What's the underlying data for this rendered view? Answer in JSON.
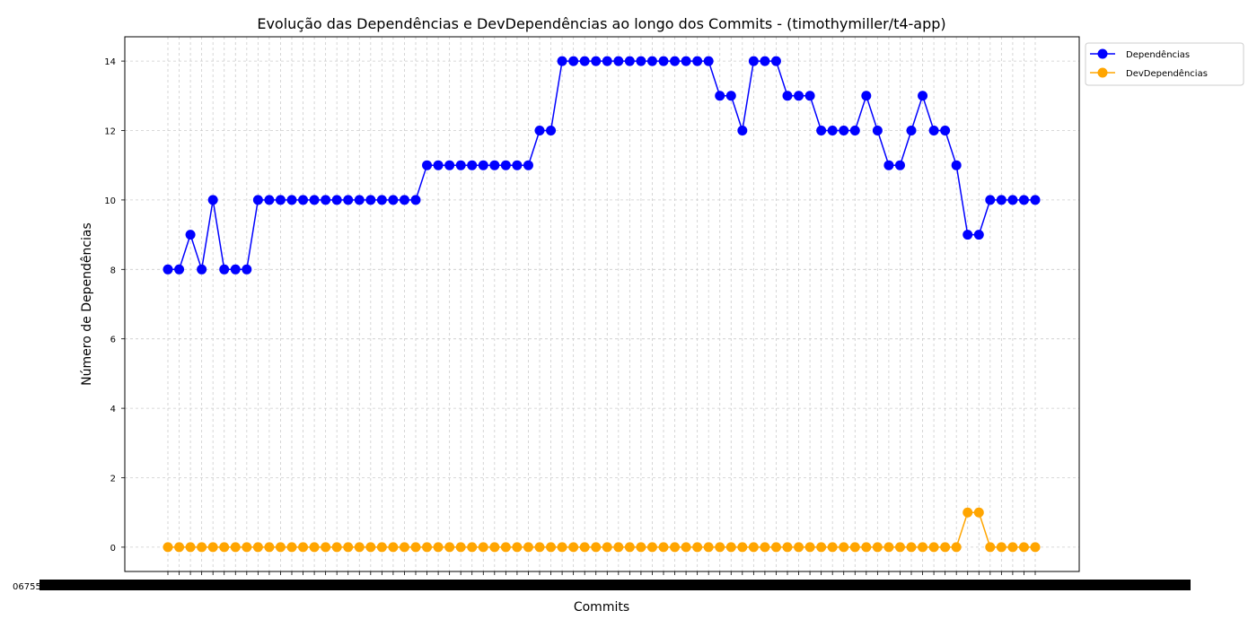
{
  "chart_data": {
    "type": "line",
    "title": "Evolução das Dependências e DevDependências ao longo dos Commits - (timothymiller/t4-app)",
    "xlabel": "Commits",
    "ylabel": "Número de Dependências",
    "ylim": [
      -0.7,
      14.7
    ],
    "yticks": [
      0,
      2,
      4,
      6,
      8,
      10,
      12,
      14
    ],
    "grid": true,
    "grid_style": "dashed",
    "legend_position": "outside-top-right",
    "x_tick_labels_overlapping": true,
    "x_first_label_fragment": "06755...",
    "x_last_label_fragment": "...8e05d",
    "series": [
      {
        "name": "Dependências",
        "color": "#0000ff",
        "marker": "circle",
        "values": [
          8,
          8,
          9,
          8,
          10,
          8,
          8,
          8,
          10,
          10,
          10,
          10,
          10,
          10,
          10,
          10,
          10,
          10,
          10,
          10,
          10,
          10,
          10,
          11,
          11,
          11,
          11,
          11,
          11,
          11,
          11,
          11,
          11,
          12,
          12,
          14,
          14,
          14,
          14,
          14,
          14,
          14,
          14,
          14,
          14,
          14,
          14,
          14,
          14,
          13,
          13,
          12,
          14,
          14,
          14,
          13,
          13,
          13,
          12,
          12,
          12,
          12,
          13,
          12,
          11,
          11,
          12,
          13,
          12,
          12,
          11,
          9,
          9,
          10,
          10,
          10,
          10,
          10
        ]
      },
      {
        "name": "DevDependências",
        "color": "#ffa500",
        "marker": "circle",
        "values": [
          0,
          0,
          0,
          0,
          0,
          0,
          0,
          0,
          0,
          0,
          0,
          0,
          0,
          0,
          0,
          0,
          0,
          0,
          0,
          0,
          0,
          0,
          0,
          0,
          0,
          0,
          0,
          0,
          0,
          0,
          0,
          0,
          0,
          0,
          0,
          0,
          0,
          0,
          0,
          0,
          0,
          0,
          0,
          0,
          0,
          0,
          0,
          0,
          0,
          0,
          0,
          0,
          0,
          0,
          0,
          0,
          0,
          0,
          0,
          0,
          0,
          0,
          0,
          0,
          0,
          0,
          0,
          0,
          0,
          0,
          0,
          1,
          1,
          0,
          0,
          0,
          0,
          0
        ]
      }
    ]
  }
}
